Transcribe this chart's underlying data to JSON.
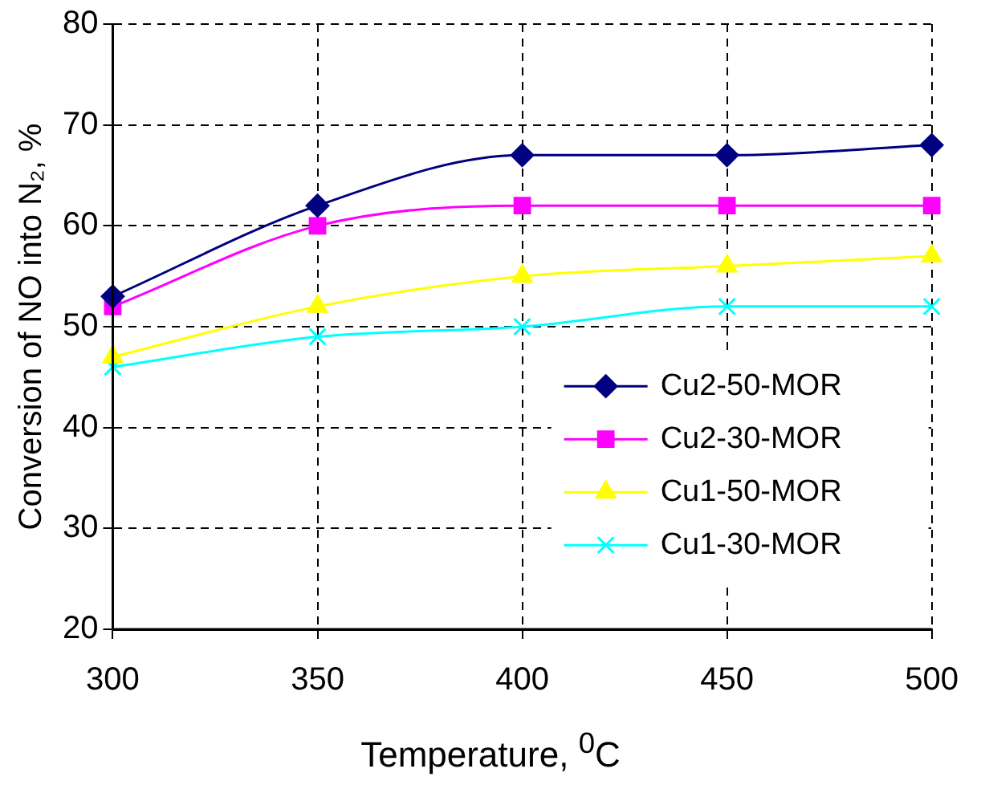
{
  "chart_data": {
    "type": "line",
    "xlabel": "Temperature, $^{0}$C",
    "ylabel": "Conversion of NO into N₂, %",
    "x": [
      300,
      350,
      400,
      450,
      500
    ],
    "series": [
      {
        "name": "Cu2-50-MOR",
        "color": "#000080",
        "marker": "diamond",
        "values": [
          53,
          62,
          67,
          67,
          68
        ]
      },
      {
        "name": "Cu2-30-MOR",
        "color": "#ff00ff",
        "marker": "square",
        "values": [
          52,
          60,
          62,
          62,
          62
        ]
      },
      {
        "name": "Cu1-50-MOR",
        "color": "#ffff00",
        "marker": "triangle",
        "values": [
          47,
          52,
          55,
          56,
          57
        ]
      },
      {
        "name": "Cu1-30-MOR",
        "color": "#00ffff",
        "marker": "cross",
        "values": [
          46,
          49,
          50,
          52,
          52
        ]
      }
    ],
    "xlim": [
      300,
      500
    ],
    "xticks": [
      300,
      350,
      400,
      450,
      500
    ],
    "ylim": [
      20,
      80
    ],
    "yticks": [
      20,
      30,
      40,
      50,
      60,
      70,
      80
    ],
    "grid": true,
    "legend": "right",
    "line_style": "solid"
  }
}
